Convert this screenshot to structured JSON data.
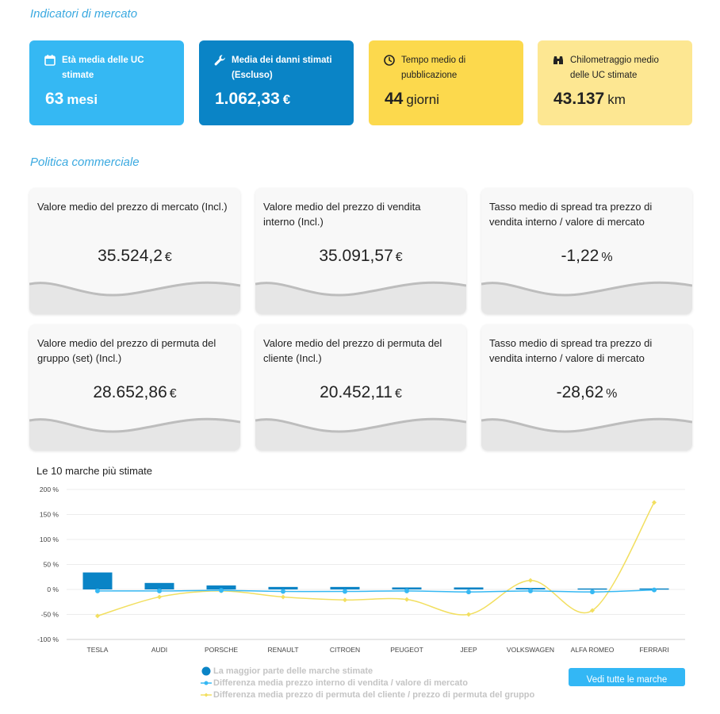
{
  "sections": {
    "market": "Indicatori di mercato",
    "commercial": "Politica commerciale"
  },
  "kpis": [
    {
      "icon": "calendar-icon",
      "label": "Età media delle UC stimate",
      "value": "63",
      "unit": "mesi",
      "color": "#35b8f3"
    },
    {
      "icon": "wrench-icon",
      "label": "Media dei danni stimati (Escluso)",
      "value": "1.062,33",
      "unit": "€",
      "color": "#0a84c6"
    },
    {
      "icon": "clock-icon",
      "label": "Tempo medio di pubblicazione",
      "value": "44",
      "unit": "giorni",
      "color": "#fcd94d"
    },
    {
      "icon": "binoculars-icon",
      "label": "Chilometraggio medio delle UC stimate",
      "value": "43.137",
      "unit": "km",
      "color": "#fde792"
    }
  ],
  "cards": [
    {
      "label": "Valore medio del prezzo di mercato (Incl.)",
      "value": "35.524,2",
      "unit": "€"
    },
    {
      "label": "Valore medio del prezzo di vendita interno (Incl.)",
      "value": "35.091,57",
      "unit": "€"
    },
    {
      "label": "Tasso medio di spread tra prezzo di vendita interno / valore di mercato",
      "value": "-1,22",
      "unit": "%"
    },
    {
      "label": "Valore medio del prezzo di permuta del gruppo (set) (Incl.)",
      "value": "28.652,86",
      "unit": "€"
    },
    {
      "label": "Valore medio del prezzo di permuta del cliente (Incl.)",
      "value": "20.452,11",
      "unit": "€"
    },
    {
      "label": "Tasso medio di spread tra prezzo di vendita interno / valore di mercato",
      "value": "-28,62",
      "unit": "%"
    }
  ],
  "chart_data": {
    "type": "bar",
    "title": "Le 10 marche più stimate",
    "categories": [
      "TESLA",
      "AUDI",
      "PORSCHE",
      "RENAULT",
      "CITROEN",
      "PEUGEOT",
      "JEEP",
      "VOLKSWAGEN",
      "ALFA ROMEO",
      "FERRARI"
    ],
    "ylim": [
      -100,
      200
    ],
    "yticks": [
      -100,
      -50,
      0,
      50,
      100,
      150,
      200
    ],
    "ytick_labels": [
      "-100 %",
      "-50 %",
      "0 %",
      "50 %",
      "100 %",
      "150 %",
      "200 %"
    ],
    "grid": true,
    "legend_position": "bottom",
    "series": [
      {
        "name": "La maggior parte delle marche stimate",
        "kind": "bar",
        "color": "#0a84c6",
        "values": [
          34,
          13,
          8,
          5,
          5,
          4,
          4,
          3,
          2,
          2
        ]
      },
      {
        "name": "Differenza media prezzo interno di vendita / valore di mercato",
        "kind": "line",
        "color": "#35b8f3",
        "values": [
          -3,
          -3,
          -2,
          -4,
          -4,
          -3,
          -5,
          -3,
          -5,
          -1
        ]
      },
      {
        "name": "Differenza media prezzo di permuta del cliente / prezzo di permuta del gruppo",
        "kind": "line",
        "color": "#f2df60",
        "values": [
          -53,
          -15,
          -3,
          -15,
          -21,
          -20,
          -50,
          18,
          -42,
          174
        ]
      }
    ]
  },
  "button": {
    "label": "Vedi tutte le marche"
  }
}
